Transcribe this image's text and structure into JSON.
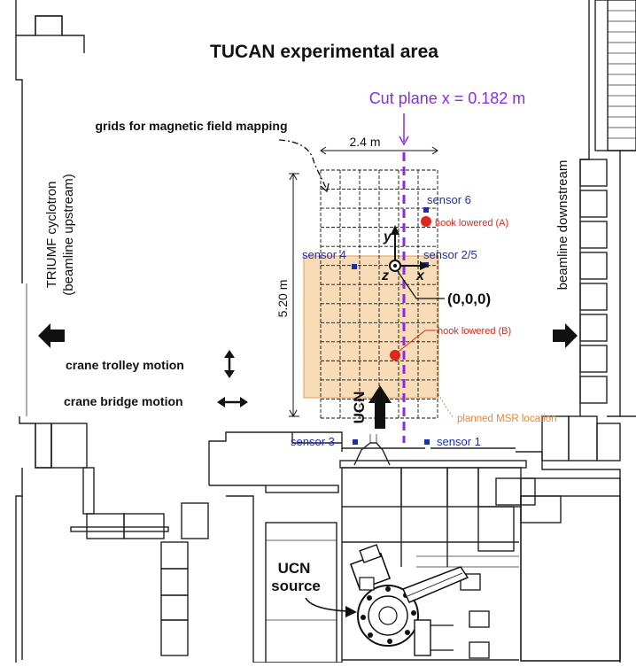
{
  "title": "TUCAN experimental area",
  "cut_plane_label": "Cut plane x = 0.182 m",
  "grid_note": "grids for magnetic field mapping",
  "dim_width": "2.4 m",
  "dim_height": "5.20 m",
  "axes": {
    "x": "x",
    "y": "y",
    "z": "z"
  },
  "origin_label": "(0,0,0)",
  "sensors": {
    "s6": "sensor 6",
    "s4": "sensor 4",
    "s25": "sensor 2/5",
    "s3": "sensor 3",
    "s1": "sensor 1"
  },
  "hooks": {
    "a": "hook lowered (A)",
    "b": "hook lowered (B)"
  },
  "msr_label": "planned MSR location",
  "ucn_arrow_label": "UCN",
  "left_side_label_1": "TRIUMF cyclotron",
  "left_side_label_2": "(beamline upstream)",
  "right_side_label": "beamline downstream",
  "crane_trolley": "crane trolley motion",
  "crane_bridge": "crane bridge motion",
  "source_label_1": "UCN",
  "source_label_2": "source",
  "colors": {
    "cut_plane": "#8a2be2",
    "sensor": "#1a2fb0",
    "hook": "#e0251b",
    "msr_fill": "#f8d9b0",
    "msr_stroke": "#e0a35a",
    "msr_text": "#e0873a"
  }
}
